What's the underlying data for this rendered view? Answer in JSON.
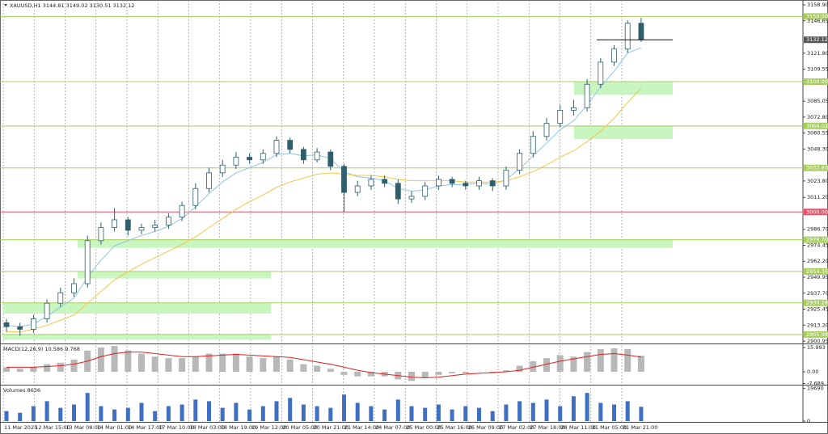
{
  "chart_data": [
    {
      "type": "candlestick",
      "title": "XAUUSD,H1 3144.81 3149.02 3130.51 3132.12",
      "color": "#2f5f6a",
      "open": [
        2915,
        2912,
        2910,
        2918,
        2930,
        2938,
        2945,
        2978,
        2988,
        2994,
        2986,
        2988,
        2990,
        2996,
        3005,
        3018,
        3030,
        3036,
        3042,
        3040,
        3045,
        3055,
        3048,
        3040,
        3046,
        3035,
        3015,
        3020,
        3025,
        3022,
        3010,
        3012,
        3020,
        3025,
        3022,
        3020,
        3024,
        3020,
        3032,
        3045,
        3058,
        3068,
        3078,
        3080,
        3098,
        3115,
        3125,
        3144.81
      ],
      "high": [
        2918,
        2915,
        2921,
        2933,
        2942,
        2949,
        2982,
        2992,
        3003,
        2996,
        2991,
        2994,
        2999,
        3008,
        3022,
        3034,
        3040,
        3046,
        3045,
        3048,
        3058,
        3057,
        3050,
        3049,
        3048,
        3037,
        3024,
        3028,
        3028,
        3025,
        3016,
        3023,
        3028,
        3027,
        3024,
        3027,
        3026,
        3035,
        3048,
        3062,
        3072,
        3082,
        3086,
        3102,
        3118,
        3128,
        3147,
        3149.02
      ],
      "low": [
        2908,
        2905,
        2907,
        2915,
        2927,
        2935,
        2942,
        2975,
        2985,
        2982,
        2983,
        2985,
        2987,
        2993,
        3002,
        3015,
        3027,
        3033,
        3037,
        3037,
        3042,
        3045,
        3037,
        3038,
        3032,
        3000,
        3012,
        3017,
        3019,
        3006,
        3007,
        3009,
        3017,
        3019,
        3017,
        3017,
        3016,
        3017,
        3029,
        3042,
        3055,
        3065,
        3074,
        3077,
        3095,
        3112,
        3122,
        3130.51
      ],
      "close": [
        2912,
        2910,
        2918,
        2930,
        2938,
        2945,
        2978,
        2988,
        2994,
        2986,
        2988,
        2990,
        2996,
        3005,
        3018,
        3030,
        3036,
        3042,
        3040,
        3045,
        3055,
        3048,
        3040,
        3046,
        3035,
        3015,
        3020,
        3025,
        3022,
        3010,
        3012,
        3020,
        3025,
        3022,
        3020,
        3024,
        3020,
        3032,
        3045,
        3058,
        3068,
        3078,
        3080,
        3098,
        3115,
        3125,
        3144.81,
        3132.12
      ],
      "lines": [
        {
          "color": "#8ec5e8",
          "values": [
            2913,
            2912,
            2914,
            2920,
            2927,
            2934,
            2950,
            2963,
            2974,
            2978,
            2982,
            2985,
            2989,
            2995,
            3004,
            3014,
            3023,
            3030,
            3034,
            3038,
            3044,
            3045,
            3043,
            3044,
            3041,
            3031,
            3027,
            3026,
            3024,
            3018,
            3016,
            3017,
            3020,
            3021,
            3021,
            3022,
            3021,
            3025,
            3033,
            3043,
            3053,
            3063,
            3070,
            3082,
            3096,
            3108,
            3122,
            3126
          ]
        },
        {
          "color": "#f5c542",
          "values": [
            2908,
            2908,
            2910,
            2913,
            2917,
            2921,
            2930,
            2939,
            2948,
            2954,
            2960,
            2965,
            2970,
            2975,
            2981,
            2988,
            2995,
            3002,
            3008,
            3013,
            3019,
            3023,
            3026,
            3029,
            3030,
            3029,
            3028,
            3028,
            3027,
            3025,
            3024,
            3024,
            3024,
            3024,
            3023,
            3023,
            3023,
            3024,
            3027,
            3031,
            3036,
            3042,
            3047,
            3054,
            3062,
            3072,
            3084,
            3095
          ]
        }
      ],
      "ylim": [
        2899.1,
        3161.4
      ],
      "yticks": [
        {
          "value": 3158.9,
          "label": "3158.90"
        },
        {
          "value": 3146.65,
          "label": "3146.65"
        },
        {
          "value": 3121.8,
          "label": "3121.80"
        },
        {
          "value": 3109.55,
          "label": "3109.55"
        },
        {
          "value": 3085.05,
          "label": "3085.05"
        },
        {
          "value": 3072.8,
          "label": "3072.80"
        },
        {
          "value": 3060.55,
          "label": "3060.55"
        },
        {
          "value": 3048.3,
          "label": "3048.30"
        },
        {
          "value": 3023.8,
          "label": "3023.80"
        },
        {
          "value": 3011.2,
          "label": "3011.20"
        },
        {
          "value": 2986.7,
          "label": "2986.70"
        },
        {
          "value": 2974.45,
          "label": "2974.45"
        },
        {
          "value": 2962.2,
          "label": "2962.20"
        },
        {
          "value": 2949.95,
          "label": "2949.95"
        },
        {
          "value": 2937.7,
          "label": "2937.70"
        },
        {
          "value": 2925.45,
          "label": "2925.45"
        },
        {
          "value": 2913.2,
          "label": "2913.20"
        },
        {
          "value": 2900.95,
          "label": "2900.95"
        }
      ],
      "levels": [
        {
          "value": 3150,
          "label": "3150.00",
          "color": "#a8cf5c"
        },
        {
          "value": 3100,
          "label": "3100.00",
          "color": "#a8cf5c"
        },
        {
          "value": 3066.02,
          "label": "3066.02",
          "color": "#a8cf5c"
        },
        {
          "value": 3033.83,
          "label": "3033.83",
          "color": "#a8cf5c"
        },
        {
          "value": 3000,
          "label": "3000.00",
          "color": "#e8506a"
        },
        {
          "value": 2978.7,
          "label": "2978.70",
          "color": "#a8cf5c"
        },
        {
          "value": 2954.35,
          "label": "2954.35",
          "color": "#a8cf5c"
        },
        {
          "value": 2930.28,
          "label": "2930.28",
          "color": "#a8cf5c"
        },
        {
          "value": 2905.98,
          "label": "2905.98",
          "color": "#a8cf5c"
        }
      ],
      "current": {
        "value": 3132.12,
        "label": "3132.12"
      },
      "zones": [
        {
          "high": 3100,
          "low": 3090
        },
        {
          "high": 3066.02,
          "low": 3056
        },
        {
          "high": 2978.7,
          "low": 2972.5
        },
        {
          "high": 2954.35,
          "low": 2949
        },
        {
          "high": 2930.28,
          "low": 2922
        },
        {
          "high": 2905.98,
          "low": 2902
        }
      ],
      "zone_color": "#c8f5c0",
      "time_labels": [
        "11 Mar 2025",
        "12 Mar 15:00",
        "13 Mar 08:00",
        "14 Mar 01:00",
        "14 Mar 17:00",
        "17 Mar 10:00",
        "18 Mar 03:00",
        "18 Mar 19:00",
        "19 Mar 12:00",
        "20 Mar 05:00",
        "20 Mar 21:00",
        "21 Mar 14:00",
        "24 Mar 07:00",
        "25 Mar 00:00",
        "25 Mar 16:00",
        "26 Mar 09:00",
        "27 Mar 02:00",
        "27 Mar 18:00",
        "28 Mar 11:00",
        "31 Mar 05:00",
        "31 Mar 21:00"
      ]
    },
    {
      "type": "macd",
      "title": "MACD(12,26,9) 10.586 9.768",
      "color": "#b8b8b8",
      "values": [
        3,
        2,
        3,
        5,
        6,
        8,
        14,
        16,
        17,
        14,
        12,
        10,
        9,
        9,
        10,
        12,
        12,
        12,
        10,
        9,
        10,
        8,
        5,
        4,
        2,
        -2,
        -3,
        -3,
        -3,
        -5,
        -6,
        -4,
        -2,
        -1,
        -1,
        0,
        -1,
        1,
        4,
        7,
        9,
        11,
        10,
        13,
        15,
        15.5,
        15,
        10.586
      ],
      "signal": {
        "color": "#e02020",
        "values": [
          3,
          3,
          3,
          3.5,
          4,
          5,
          7,
          10,
          12,
          13,
          13,
          12,
          11,
          10,
          10,
          10.5,
          11,
          11.5,
          11,
          10.5,
          10,
          9.5,
          8,
          6.5,
          5,
          3,
          1,
          -0.5,
          -1.5,
          -2.5,
          -3.5,
          -4,
          -3.5,
          -2.5,
          -1.5,
          -1,
          -0.5,
          0,
          1,
          3,
          5,
          7,
          8.5,
          10,
          11.5,
          12,
          11,
          9.768
        ]
      },
      "ylim": [
        -8.5,
        17.6
      ],
      "yticks": [
        {
          "value": 15.993,
          "label": "15.993"
        },
        {
          "value": 0,
          "label": "0.00"
        },
        {
          "value": -7.689,
          "label": "-7.689"
        }
      ]
    },
    {
      "type": "volume",
      "title": "Volumes 8636",
      "color": "#3f6fc0",
      "values": [
        6000,
        5000,
        9000,
        12000,
        8000,
        10000,
        17000,
        9000,
        7000,
        8000,
        11000,
        6000,
        9000,
        10000,
        13000,
        12000,
        8000,
        11000,
        7000,
        9000,
        12000,
        14000,
        10000,
        9000,
        8000,
        16000,
        11000,
        9000,
        7000,
        13000,
        9000,
        8000,
        10000,
        7000,
        9000,
        8000,
        6000,
        10000,
        12000,
        11000,
        13000,
        9000,
        15000,
        17000,
        11000,
        10000,
        12000,
        8636
      ],
      "ylim": [
        0,
        21000
      ],
      "yticks": [
        19690,
        0
      ]
    }
  ]
}
